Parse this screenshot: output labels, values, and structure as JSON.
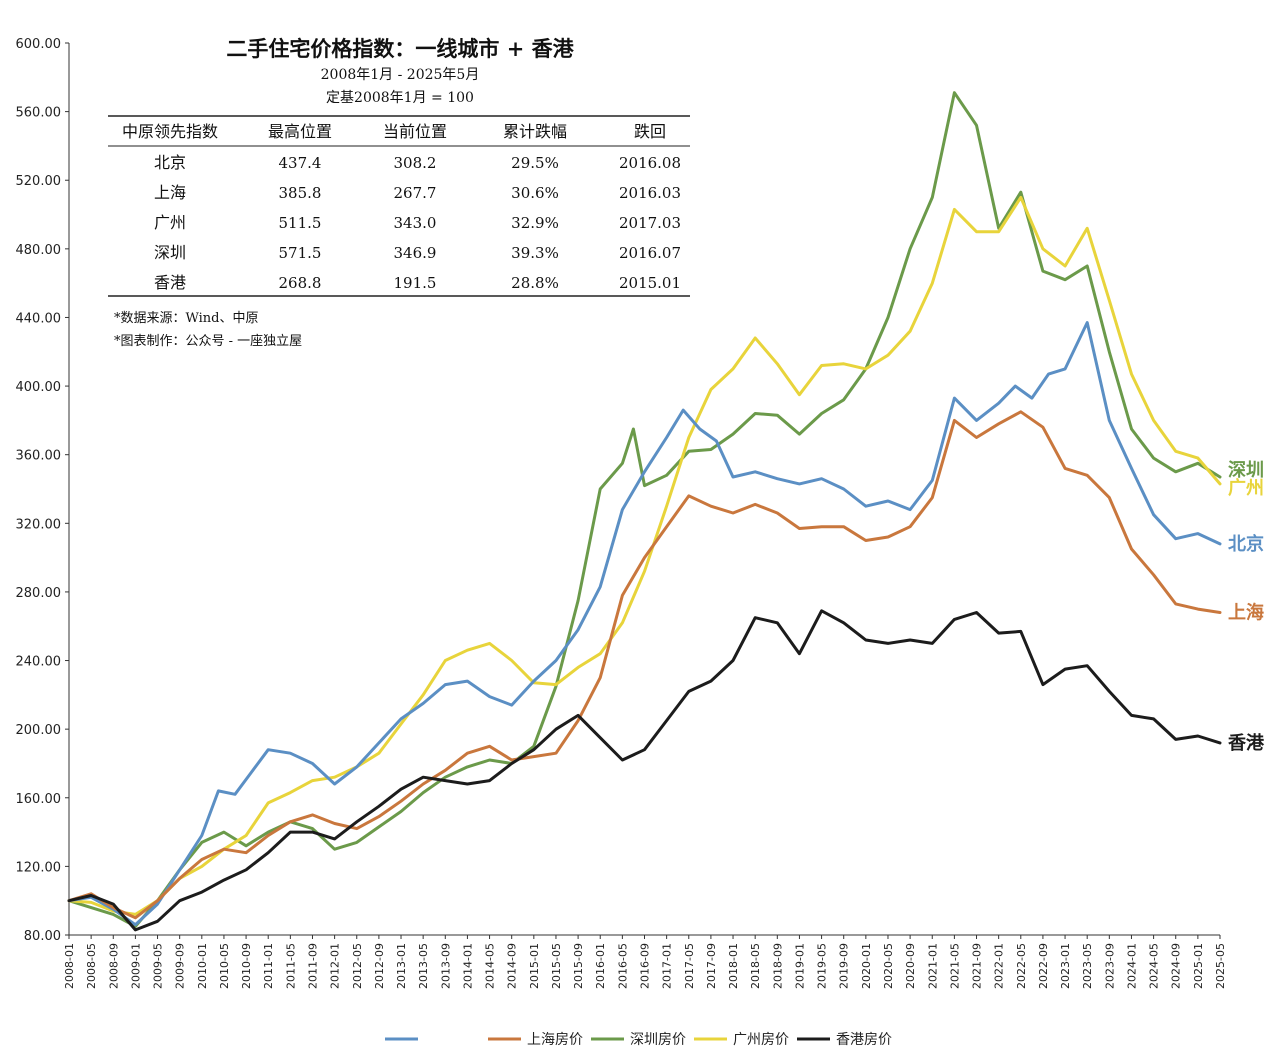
{
  "chart_data": {
    "type": "line",
    "title": "二手住宅价格指数：一线城市 + 香港",
    "subtitle": "2008年1月 - 2025年5月",
    "base_note": "定基2008年1月 = 100",
    "ylim": [
      80,
      600
    ],
    "yticks": [
      "80.00",
      "120.00",
      "160.00",
      "200.00",
      "240.00",
      "280.00",
      "320.00",
      "360.00",
      "400.00",
      "440.00",
      "480.00",
      "520.00",
      "560.00",
      "600.00"
    ],
    "xlim": [
      "2008-01",
      "2025-05"
    ],
    "xtick_step_months": 4,
    "grid": false,
    "legend_position": "bottom",
    "table": {
      "headers": [
        "中原领先指数",
        "最高位置",
        "当前位置",
        "累计跌幅",
        "跌回"
      ],
      "rows": [
        [
          "北京",
          "437.4",
          "308.2",
          "29.5%",
          "2016.08"
        ],
        [
          "上海",
          "385.8",
          "267.7",
          "30.6%",
          "2016.03"
        ],
        [
          "广州",
          "511.5",
          "343.0",
          "32.9%",
          "2017.03"
        ],
        [
          "深圳",
          "571.5",
          "346.9",
          "39.3%",
          "2016.07"
        ],
        [
          "香港",
          "268.8",
          "191.5",
          "28.8%",
          "2015.01"
        ]
      ]
    },
    "notes": [
      "*数据来源：Wind、中原",
      "*图表制作：公众号 - 一座独立屋"
    ],
    "series": [
      {
        "key": "beijing",
        "name": "",
        "end_label": "北京",
        "color": "#5b8fc4",
        "points": [
          [
            "2008-01",
            100
          ],
          [
            "2008-05",
            102
          ],
          [
            "2008-09",
            95
          ],
          [
            "2009-01",
            86
          ],
          [
            "2009-05",
            98
          ],
          [
            "2009-09",
            118
          ],
          [
            "2010-01",
            138
          ],
          [
            "2010-04",
            164
          ],
          [
            "2010-07",
            162
          ],
          [
            "2010-10",
            175
          ],
          [
            "2011-01",
            188
          ],
          [
            "2011-05",
            186
          ],
          [
            "2011-09",
            180
          ],
          [
            "2012-01",
            168
          ],
          [
            "2012-05",
            178
          ],
          [
            "2012-09",
            192
          ],
          [
            "2013-01",
            206
          ],
          [
            "2013-05",
            215
          ],
          [
            "2013-09",
            226
          ],
          [
            "2014-01",
            228
          ],
          [
            "2014-05",
            219
          ],
          [
            "2014-09",
            214
          ],
          [
            "2015-01",
            228
          ],
          [
            "2015-05",
            240
          ],
          [
            "2015-09",
            258
          ],
          [
            "2016-01",
            283
          ],
          [
            "2016-05",
            328
          ],
          [
            "2016-09",
            350
          ],
          [
            "2017-01",
            370
          ],
          [
            "2017-04",
            386
          ],
          [
            "2017-07",
            375
          ],
          [
            "2017-10",
            368
          ],
          [
            "2018-01",
            347
          ],
          [
            "2018-05",
            350
          ],
          [
            "2018-09",
            346
          ],
          [
            "2019-01",
            343
          ],
          [
            "2019-05",
            346
          ],
          [
            "2019-09",
            340
          ],
          [
            "2020-01",
            330
          ],
          [
            "2020-05",
            333
          ],
          [
            "2020-09",
            328
          ],
          [
            "2021-01",
            345
          ],
          [
            "2021-05",
            393
          ],
          [
            "2021-09",
            380
          ],
          [
            "2022-01",
            390
          ],
          [
            "2022-04",
            400
          ],
          [
            "2022-07",
            393
          ],
          [
            "2022-10",
            407
          ],
          [
            "2023-01",
            410
          ],
          [
            "2023-05",
            437
          ],
          [
            "2023-09",
            380
          ],
          [
            "2024-01",
            352
          ],
          [
            "2024-05",
            325
          ],
          [
            "2024-09",
            311
          ],
          [
            "2025-01",
            314
          ],
          [
            "2025-05",
            308
          ]
        ]
      },
      {
        "key": "shanghai",
        "name": "上海房价",
        "end_label": "上海",
        "color": "#c9773d",
        "points": [
          [
            "2008-01",
            100
          ],
          [
            "2008-05",
            104
          ],
          [
            "2008-09",
            96
          ],
          [
            "2009-01",
            90
          ],
          [
            "2009-05",
            100
          ],
          [
            "2009-09",
            113
          ],
          [
            "2010-01",
            124
          ],
          [
            "2010-05",
            130
          ],
          [
            "2010-09",
            128
          ],
          [
            "2011-01",
            138
          ],
          [
            "2011-05",
            146
          ],
          [
            "2011-09",
            150
          ],
          [
            "2012-01",
            145
          ],
          [
            "2012-05",
            142
          ],
          [
            "2012-09",
            149
          ],
          [
            "2013-01",
            158
          ],
          [
            "2013-05",
            168
          ],
          [
            "2013-09",
            176
          ],
          [
            "2014-01",
            186
          ],
          [
            "2014-05",
            190
          ],
          [
            "2014-09",
            182
          ],
          [
            "2015-01",
            184
          ],
          [
            "2015-05",
            186
          ],
          [
            "2015-09",
            205
          ],
          [
            "2016-01",
            230
          ],
          [
            "2016-05",
            278
          ],
          [
            "2016-09",
            300
          ],
          [
            "2017-01",
            318
          ],
          [
            "2017-05",
            336
          ],
          [
            "2017-09",
            330
          ],
          [
            "2018-01",
            326
          ],
          [
            "2018-05",
            331
          ],
          [
            "2018-09",
            326
          ],
          [
            "2019-01",
            317
          ],
          [
            "2019-05",
            318
          ],
          [
            "2019-09",
            318
          ],
          [
            "2020-01",
            310
          ],
          [
            "2020-05",
            312
          ],
          [
            "2020-09",
            318
          ],
          [
            "2021-01",
            335
          ],
          [
            "2021-05",
            380
          ],
          [
            "2021-09",
            370
          ],
          [
            "2022-01",
            378
          ],
          [
            "2022-05",
            385
          ],
          [
            "2022-09",
            376
          ],
          [
            "2023-01",
            352
          ],
          [
            "2023-05",
            348
          ],
          [
            "2023-09",
            335
          ],
          [
            "2024-01",
            305
          ],
          [
            "2024-05",
            290
          ],
          [
            "2024-09",
            273
          ],
          [
            "2025-01",
            270
          ],
          [
            "2025-05",
            268
          ]
        ]
      },
      {
        "key": "shenzhen",
        "name": "深圳房价",
        "end_label": "深圳",
        "color": "#6b9a4a",
        "points": [
          [
            "2008-01",
            100
          ],
          [
            "2008-05",
            96
          ],
          [
            "2008-09",
            92
          ],
          [
            "2009-01",
            85
          ],
          [
            "2009-05",
            100
          ],
          [
            "2009-09",
            118
          ],
          [
            "2010-01",
            134
          ],
          [
            "2010-05",
            140
          ],
          [
            "2010-09",
            132
          ],
          [
            "2011-01",
            140
          ],
          [
            "2011-05",
            146
          ],
          [
            "2011-09",
            142
          ],
          [
            "2012-01",
            130
          ],
          [
            "2012-05",
            134
          ],
          [
            "2012-09",
            143
          ],
          [
            "2013-01",
            152
          ],
          [
            "2013-05",
            163
          ],
          [
            "2013-09",
            172
          ],
          [
            "2014-01",
            178
          ],
          [
            "2014-05",
            182
          ],
          [
            "2014-09",
            180
          ],
          [
            "2015-01",
            190
          ],
          [
            "2015-05",
            225
          ],
          [
            "2015-09",
            275
          ],
          [
            "2016-01",
            340
          ],
          [
            "2016-05",
            355
          ],
          [
            "2016-07",
            375
          ],
          [
            "2016-09",
            342
          ],
          [
            "2017-01",
            348
          ],
          [
            "2017-05",
            362
          ],
          [
            "2017-09",
            363
          ],
          [
            "2018-01",
            372
          ],
          [
            "2018-05",
            384
          ],
          [
            "2018-09",
            383
          ],
          [
            "2019-01",
            372
          ],
          [
            "2019-05",
            384
          ],
          [
            "2019-09",
            392
          ],
          [
            "2020-01",
            410
          ],
          [
            "2020-05",
            440
          ],
          [
            "2020-09",
            480
          ],
          [
            "2021-01",
            510
          ],
          [
            "2021-05",
            571
          ],
          [
            "2021-09",
            552
          ],
          [
            "2022-01",
            492
          ],
          [
            "2022-05",
            513
          ],
          [
            "2022-09",
            467
          ],
          [
            "2023-01",
            462
          ],
          [
            "2023-05",
            470
          ],
          [
            "2023-09",
            420
          ],
          [
            "2024-01",
            375
          ],
          [
            "2024-05",
            358
          ],
          [
            "2024-09",
            350
          ],
          [
            "2025-01",
            355
          ],
          [
            "2025-05",
            347
          ]
        ]
      },
      {
        "key": "guangzhou",
        "name": "广州房价",
        "end_label": "广州",
        "color": "#e8d43b",
        "points": [
          [
            "2008-01",
            100
          ],
          [
            "2008-05",
            99
          ],
          [
            "2008-09",
            94
          ],
          [
            "2009-01",
            92
          ],
          [
            "2009-05",
            100
          ],
          [
            "2009-09",
            113
          ],
          [
            "2010-01",
            120
          ],
          [
            "2010-05",
            130
          ],
          [
            "2010-09",
            138
          ],
          [
            "2011-01",
            157
          ],
          [
            "2011-05",
            163
          ],
          [
            "2011-09",
            170
          ],
          [
            "2012-01",
            172
          ],
          [
            "2012-05",
            178
          ],
          [
            "2012-09",
            186
          ],
          [
            "2013-01",
            203
          ],
          [
            "2013-05",
            220
          ],
          [
            "2013-09",
            240
          ],
          [
            "2014-01",
            246
          ],
          [
            "2014-05",
            250
          ],
          [
            "2014-09",
            240
          ],
          [
            "2015-01",
            227
          ],
          [
            "2015-05",
            226
          ],
          [
            "2015-09",
            236
          ],
          [
            "2016-01",
            244
          ],
          [
            "2016-05",
            262
          ],
          [
            "2016-09",
            292
          ],
          [
            "2017-01",
            330
          ],
          [
            "2017-05",
            370
          ],
          [
            "2017-09",
            398
          ],
          [
            "2018-01",
            410
          ],
          [
            "2018-05",
            428
          ],
          [
            "2018-09",
            413
          ],
          [
            "2019-01",
            395
          ],
          [
            "2019-05",
            412
          ],
          [
            "2019-09",
            413
          ],
          [
            "2020-01",
            410
          ],
          [
            "2020-05",
            418
          ],
          [
            "2020-09",
            432
          ],
          [
            "2021-01",
            460
          ],
          [
            "2021-05",
            503
          ],
          [
            "2021-09",
            490
          ],
          [
            "2022-01",
            490
          ],
          [
            "2022-05",
            510
          ],
          [
            "2022-09",
            480
          ],
          [
            "2023-01",
            470
          ],
          [
            "2023-05",
            492
          ],
          [
            "2023-09",
            450
          ],
          [
            "2024-01",
            407
          ],
          [
            "2024-05",
            380
          ],
          [
            "2024-09",
            362
          ],
          [
            "2025-01",
            358
          ],
          [
            "2025-05",
            343
          ]
        ]
      },
      {
        "key": "hongkong",
        "name": "香港房价",
        "end_label": "香港",
        "color": "#1c1c1c",
        "points": [
          [
            "2008-01",
            100
          ],
          [
            "2008-05",
            103
          ],
          [
            "2008-09",
            98
          ],
          [
            "2009-01",
            83
          ],
          [
            "2009-05",
            88
          ],
          [
            "2009-09",
            100
          ],
          [
            "2010-01",
            105
          ],
          [
            "2010-05",
            112
          ],
          [
            "2010-09",
            118
          ],
          [
            "2011-01",
            128
          ],
          [
            "2011-05",
            140
          ],
          [
            "2011-09",
            140
          ],
          [
            "2012-01",
            136
          ],
          [
            "2012-05",
            146
          ],
          [
            "2012-09",
            155
          ],
          [
            "2013-01",
            165
          ],
          [
            "2013-05",
            172
          ],
          [
            "2013-09",
            170
          ],
          [
            "2014-01",
            168
          ],
          [
            "2014-05",
            170
          ],
          [
            "2014-09",
            180
          ],
          [
            "2015-01",
            188
          ],
          [
            "2015-05",
            200
          ],
          [
            "2015-09",
            208
          ],
          [
            "2016-01",
            195
          ],
          [
            "2016-05",
            182
          ],
          [
            "2016-09",
            188
          ],
          [
            "2017-01",
            205
          ],
          [
            "2017-05",
            222
          ],
          [
            "2017-09",
            228
          ],
          [
            "2018-01",
            240
          ],
          [
            "2018-05",
            265
          ],
          [
            "2018-09",
            262
          ],
          [
            "2019-01",
            244
          ],
          [
            "2019-05",
            269
          ],
          [
            "2019-09",
            262
          ],
          [
            "2020-01",
            252
          ],
          [
            "2020-05",
            250
          ],
          [
            "2020-09",
            252
          ],
          [
            "2021-01",
            250
          ],
          [
            "2021-05",
            264
          ],
          [
            "2021-09",
            268
          ],
          [
            "2022-01",
            256
          ],
          [
            "2022-05",
            257
          ],
          [
            "2022-09",
            226
          ],
          [
            "2023-01",
            235
          ],
          [
            "2023-05",
            237
          ],
          [
            "2023-09",
            222
          ],
          [
            "2024-01",
            208
          ],
          [
            "2024-05",
            206
          ],
          [
            "2024-09",
            194
          ],
          [
            "2025-01",
            196
          ],
          [
            "2025-05",
            192
          ]
        ]
      }
    ]
  }
}
